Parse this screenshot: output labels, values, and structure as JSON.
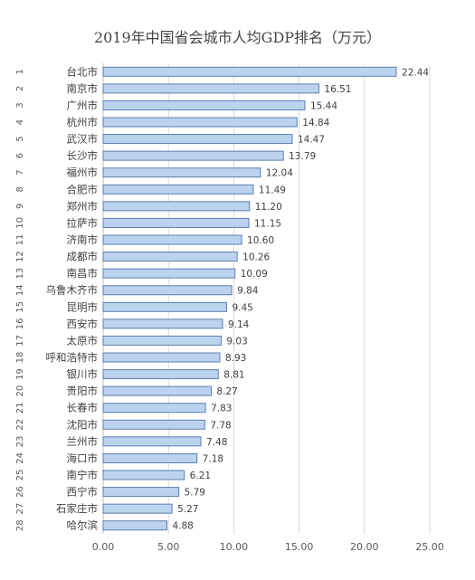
{
  "chart_data": {
    "type": "bar",
    "orientation": "horizontal",
    "title": "2019年中国省会城市人均GDP排名（万元）",
    "xlabel": "",
    "ylabel": "",
    "xlim": [
      0,
      25
    ],
    "xticks": [
      "0.00",
      "5.00",
      "10.00",
      "15.00",
      "20.00",
      "25.00"
    ],
    "grid": true,
    "legend": "none",
    "ranks": [
      "1",
      "2",
      "3",
      "4",
      "5",
      "6",
      "7",
      "8",
      "9",
      "10",
      "11",
      "12",
      "13",
      "14",
      "15",
      "16",
      "17",
      "18",
      "19",
      "20",
      "21",
      "22",
      "23",
      "24",
      "25",
      "26",
      "27",
      "28"
    ],
    "categories": [
      "台北市",
      "南京市",
      "广州市",
      "杭州市",
      "武汉市",
      "长沙市",
      "福州市",
      "合肥市",
      "郑州市",
      "拉萨市",
      "济南市",
      "成都市",
      "南昌市",
      "乌鲁木齐市",
      "昆明市",
      "西安市",
      "太原市",
      "呼和浩特市",
      "银川市",
      "贵阳市",
      "长春市",
      "沈阳市",
      "兰州市",
      "海口市",
      "南宁市",
      "西宁市",
      "石家庄市",
      "哈尔滨"
    ],
    "values": [
      22.44,
      16.51,
      15.44,
      14.84,
      14.47,
      13.79,
      12.04,
      11.49,
      11.2,
      11.15,
      10.6,
      10.26,
      10.09,
      9.84,
      9.45,
      9.14,
      9.03,
      8.93,
      8.81,
      8.27,
      7.83,
      7.78,
      7.48,
      7.18,
      6.21,
      5.79,
      5.27,
      4.88
    ],
    "value_labels": [
      "22.44",
      "16.51",
      "15.44",
      "14.84",
      "14.47",
      "13.79",
      "12.04",
      "11.49",
      "11.20",
      "11.15",
      "10.60",
      "10.26",
      "10.09",
      "9.84",
      "9.45",
      "9.14",
      "9.03",
      "8.93",
      "8.81",
      "8.27",
      "7.83",
      "7.78",
      "7.48",
      "7.18",
      "6.21",
      "5.79",
      "5.27",
      "4.88"
    ],
    "bar_color": "#bcd3ef",
    "bar_edge_color": "#5a7fae"
  }
}
